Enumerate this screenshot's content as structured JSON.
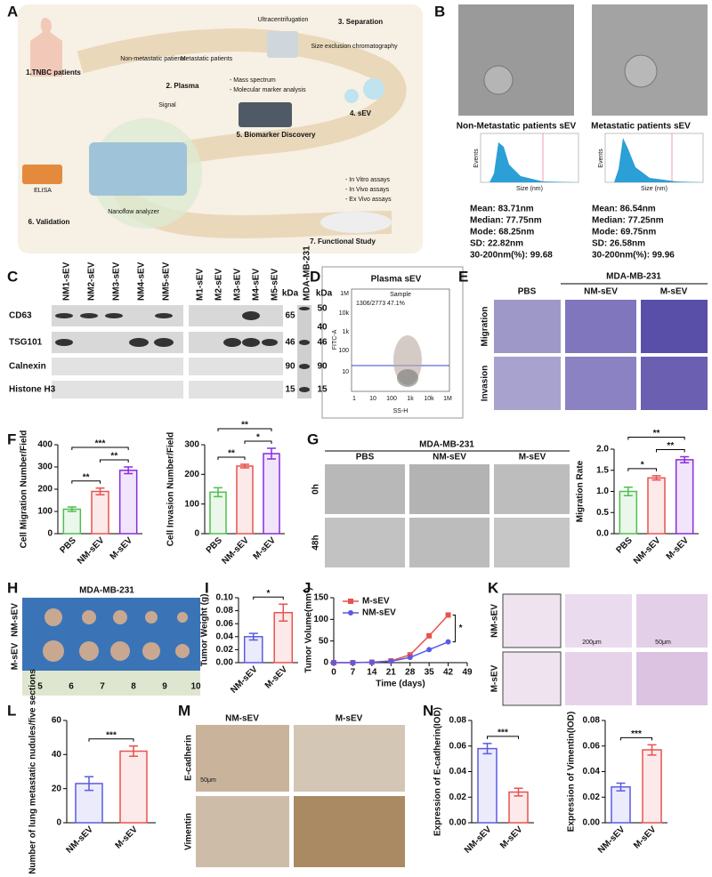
{
  "panel_letters": [
    "A",
    "B",
    "C",
    "D",
    "E",
    "F",
    "G",
    "H",
    "I",
    "J",
    "K",
    "L",
    "M",
    "N"
  ],
  "workflow": {
    "steps": [
      "1.TNBC patients",
      "2. Plasma",
      "3. Separation",
      "4. sEV",
      "5. Biomarker Discovery",
      "6. Validation",
      "7. Functional Study"
    ],
    "notes": [
      "Non-metastatic patients",
      "Metastatic patients",
      "Ultracentrifugation",
      "Size exclusion chromatography",
      "- Mass spectrum",
      "- Molecular marker analysis",
      "Signal",
      "ELISA",
      "Nanoflow analyzer",
      "- In Vitro assays",
      "- In Vivo assays",
      "- Ex Vivo assays"
    ]
  },
  "em": {
    "groups": [
      {
        "title": "Non-Metastatic patients sEV",
        "stats": [
          "Mean: 83.71nm",
          "Median: 77.75nm",
          "Mode: 68.25nm",
          "SD: 22.82nm",
          "30-200nm(%): 99.68"
        ]
      },
      {
        "title": "Metastatic patients sEV",
        "stats": [
          "Mean: 86.54nm",
          "Median: 77.25nm",
          "Mode: 69.75nm",
          "SD: 26.58nm",
          "30-200nm(%): 99.96"
        ]
      }
    ],
    "y_label": "Events",
    "x_label": "Size (nm)"
  },
  "western": {
    "lanes_nm": [
      "NM1-sEV",
      "NM2-sEV",
      "NM3-sEV",
      "NM4-sEV",
      "NM5-sEV"
    ],
    "lanes_m": [
      "M1-sEV",
      "M2-sEV",
      "M3-sEV",
      "M4-sEV",
      "M5-sEV"
    ],
    "cell_line": "MDA-MB-231",
    "unit": "kDa",
    "rows": [
      "CD63",
      "TSG101",
      "Calnexin",
      "Histone H3"
    ],
    "sizes": [
      "65",
      "46",
      "90",
      "15"
    ],
    "markers": [
      "50",
      "40",
      "46",
      "90",
      "15"
    ]
  },
  "flow": {
    "title": "Plasma sEV",
    "sample": "Sample",
    "gate": "1306/2773  47.1%",
    "y_label": "FITC-A",
    "x_label": "SS-H",
    "x_ticks": [
      "1",
      "10",
      "100",
      "1k",
      "10k",
      "1M"
    ],
    "y_ticks": [
      "1M",
      "10k",
      "1k",
      "100",
      "10"
    ]
  },
  "transwell": {
    "cell_line": "MDA-MB-231",
    "columns": [
      "PBS",
      "NM-sEV",
      "M-sEV"
    ],
    "rows": [
      "Migration",
      "Invasion"
    ]
  },
  "wound": {
    "cell_line": "MDA-MB-231",
    "columns": [
      "PBS",
      "NM-sEV",
      "M-sEV"
    ],
    "rows": [
      "0h",
      "48h"
    ]
  },
  "tumor_photo": {
    "cell_line": "MDA-MB-231",
    "rows": [
      "NM-sEV",
      "M-sEV"
    ],
    "ruler": [
      "5",
      "6",
      "7",
      "8",
      "9",
      "10"
    ]
  },
  "lung": {
    "rows": [
      "NM-sEV",
      "M-sEV"
    ],
    "scales": [
      "200μm",
      "50μm"
    ]
  },
  "ihc": {
    "columns": [
      "NM-sEV",
      "M-sEV"
    ],
    "rows": [
      "E-cadherin",
      "Vimentin"
    ],
    "scale": "50μm"
  },
  "chart_data": [
    {
      "type": "bar",
      "y_label": "Cell Migration Number/Field",
      "categories": [
        "PBS",
        "NM-sEV",
        "M-sEV"
      ],
      "values": [
        110,
        190,
        285
      ],
      "errors": [
        10,
        15,
        15
      ],
      "colors": [
        "#4fbf4f",
        "#e8524f",
        "#8a2be2"
      ],
      "ylim": [
        0,
        400
      ],
      "yticks": [
        0,
        100,
        200,
        300,
        400
      ],
      "brackets": [
        {
          "from": 0,
          "to": 1,
          "label": "**"
        },
        {
          "from": 1,
          "to": 2,
          "label": "**"
        },
        {
          "from": 0,
          "to": 2,
          "label": "***"
        }
      ]
    },
    {
      "type": "bar",
      "y_label": "Cell Invasion Number/Field",
      "categories": [
        "PBS",
        "NM-sEV",
        "M-sEV"
      ],
      "values": [
        140,
        228,
        270
      ],
      "errors": [
        15,
        6,
        18
      ],
      "colors": [
        "#4fbf4f",
        "#e8524f",
        "#8a2be2"
      ],
      "ylim": [
        0,
        300
      ],
      "yticks": [
        0,
        100,
        200,
        300
      ],
      "brackets": [
        {
          "from": 0,
          "to": 1,
          "label": "**"
        },
        {
          "from": 1,
          "to": 2,
          "label": "*"
        },
        {
          "from": 0,
          "to": 2,
          "label": "**"
        }
      ]
    },
    {
      "type": "bar",
      "y_label": "Migration Rate",
      "categories": [
        "PBS",
        "NM-sEV",
        "M-sEV"
      ],
      "values": [
        1.0,
        1.32,
        1.75
      ],
      "errors": [
        0.1,
        0.05,
        0.07
      ],
      "colors": [
        "#4fbf4f",
        "#e8524f",
        "#8a2be2"
      ],
      "ylim": [
        0,
        2
      ],
      "yticks": [
        {
          "value": 0,
          "label": "0.0"
        },
        {
          "value": 0.5,
          "label": "0.5"
        },
        {
          "value": 1,
          "label": "1.0"
        },
        {
          "value": 1.5,
          "label": "1.5"
        },
        {
          "value": 2,
          "label": "2.0"
        }
      ],
      "brackets": [
        {
          "from": 0,
          "to": 1,
          "label": "*"
        },
        {
          "from": 1,
          "to": 2,
          "label": "**"
        },
        {
          "from": 0,
          "to": 2,
          "label": "**"
        }
      ]
    },
    {
      "type": "bar",
      "y_label": "Tumor Weight (g)",
      "categories": [
        "NM-sEV",
        "M-sEV"
      ],
      "values": [
        0.04,
        0.077
      ],
      "errors": [
        0.005,
        0.013
      ],
      "colors": [
        "#5a5ae6",
        "#e8524f"
      ],
      "ylim": [
        0,
        0.1
      ],
      "yticks": [
        {
          "value": 0,
          "label": "0.00"
        },
        {
          "value": 0.02,
          "label": "0.02"
        },
        {
          "value": 0.04,
          "label": "0.04"
        },
        {
          "value": 0.06,
          "label": "0.06"
        },
        {
          "value": 0.08,
          "label": "0.08"
        },
        {
          "value": 0.1,
          "label": "0.10"
        }
      ],
      "brackets": [
        {
          "from": 0,
          "to": 1,
          "label": "*"
        }
      ]
    },
    {
      "type": "line",
      "y_label": "Tumor Volume(mm³)",
      "x_label": "Time (days)",
      "x": [
        0,
        7,
        14,
        21,
        28,
        35,
        42
      ],
      "xlim": [
        0,
        49
      ],
      "xticks": [
        0,
        7,
        14,
        21,
        28,
        35,
        42,
        49
      ],
      "ylim": [
        0,
        150
      ],
      "yticks": [
        0,
        50,
        100,
        150
      ],
      "series": [
        {
          "name": "M-sEV",
          "color": "#e8524f",
          "values": [
            0,
            0,
            1,
            4,
            18,
            62,
            110
          ]
        },
        {
          "name": "NM-sEV",
          "color": "#5a5ae6",
          "values": [
            0,
            0,
            1,
            3,
            12,
            30,
            48
          ]
        }
      ],
      "annotation": "*"
    },
    {
      "type": "bar",
      "y_label": "Number of lung metastatic nudules/five sections",
      "categories": [
        "NM-sEV",
        "M-sEV"
      ],
      "values": [
        23,
        42
      ],
      "errors": [
        4,
        3
      ],
      "colors": [
        "#5a5ae6",
        "#e8524f"
      ],
      "ylim": [
        0,
        60
      ],
      "yticks": [
        0,
        20,
        40,
        60
      ],
      "brackets": [
        {
          "from": 0,
          "to": 1,
          "label": "***"
        }
      ]
    },
    {
      "type": "bar",
      "y_label": "Expression of E-cadherin(IOD)",
      "categories": [
        "NM-sEV",
        "M-sEV"
      ],
      "values": [
        0.058,
        0.024
      ],
      "errors": [
        0.004,
        0.003
      ],
      "colors": [
        "#5a5ae6",
        "#e8524f"
      ],
      "ylim": [
        0,
        0.08
      ],
      "yticks": [
        {
          "value": 0,
          "label": "0.00"
        },
        {
          "value": 0.02,
          "label": "0.02"
        },
        {
          "value": 0.04,
          "label": "0.04"
        },
        {
          "value": 0.06,
          "label": "0.06"
        },
        {
          "value": 0.08,
          "label": "0.08"
        }
      ],
      "brackets": [
        {
          "from": 0,
          "to": 1,
          "label": "***"
        }
      ]
    },
    {
      "type": "bar",
      "y_label": "Expression of Vimentin(IOD)",
      "categories": [
        "NM-sEV",
        "M-sEV"
      ],
      "values": [
        0.028,
        0.057
      ],
      "errors": [
        0.003,
        0.004
      ],
      "colors": [
        "#5a5ae6",
        "#e8524f"
      ],
      "ylim": [
        0,
        0.08
      ],
      "yticks": [
        {
          "value": 0,
          "label": "0.00"
        },
        {
          "value": 0.02,
          "label": "0.02"
        },
        {
          "value": 0.04,
          "label": "0.04"
        },
        {
          "value": 0.06,
          "label": "0.06"
        },
        {
          "value": 0.08,
          "label": "0.08"
        }
      ],
      "brackets": [
        {
          "from": 0,
          "to": 1,
          "label": "***"
        }
      ]
    }
  ]
}
